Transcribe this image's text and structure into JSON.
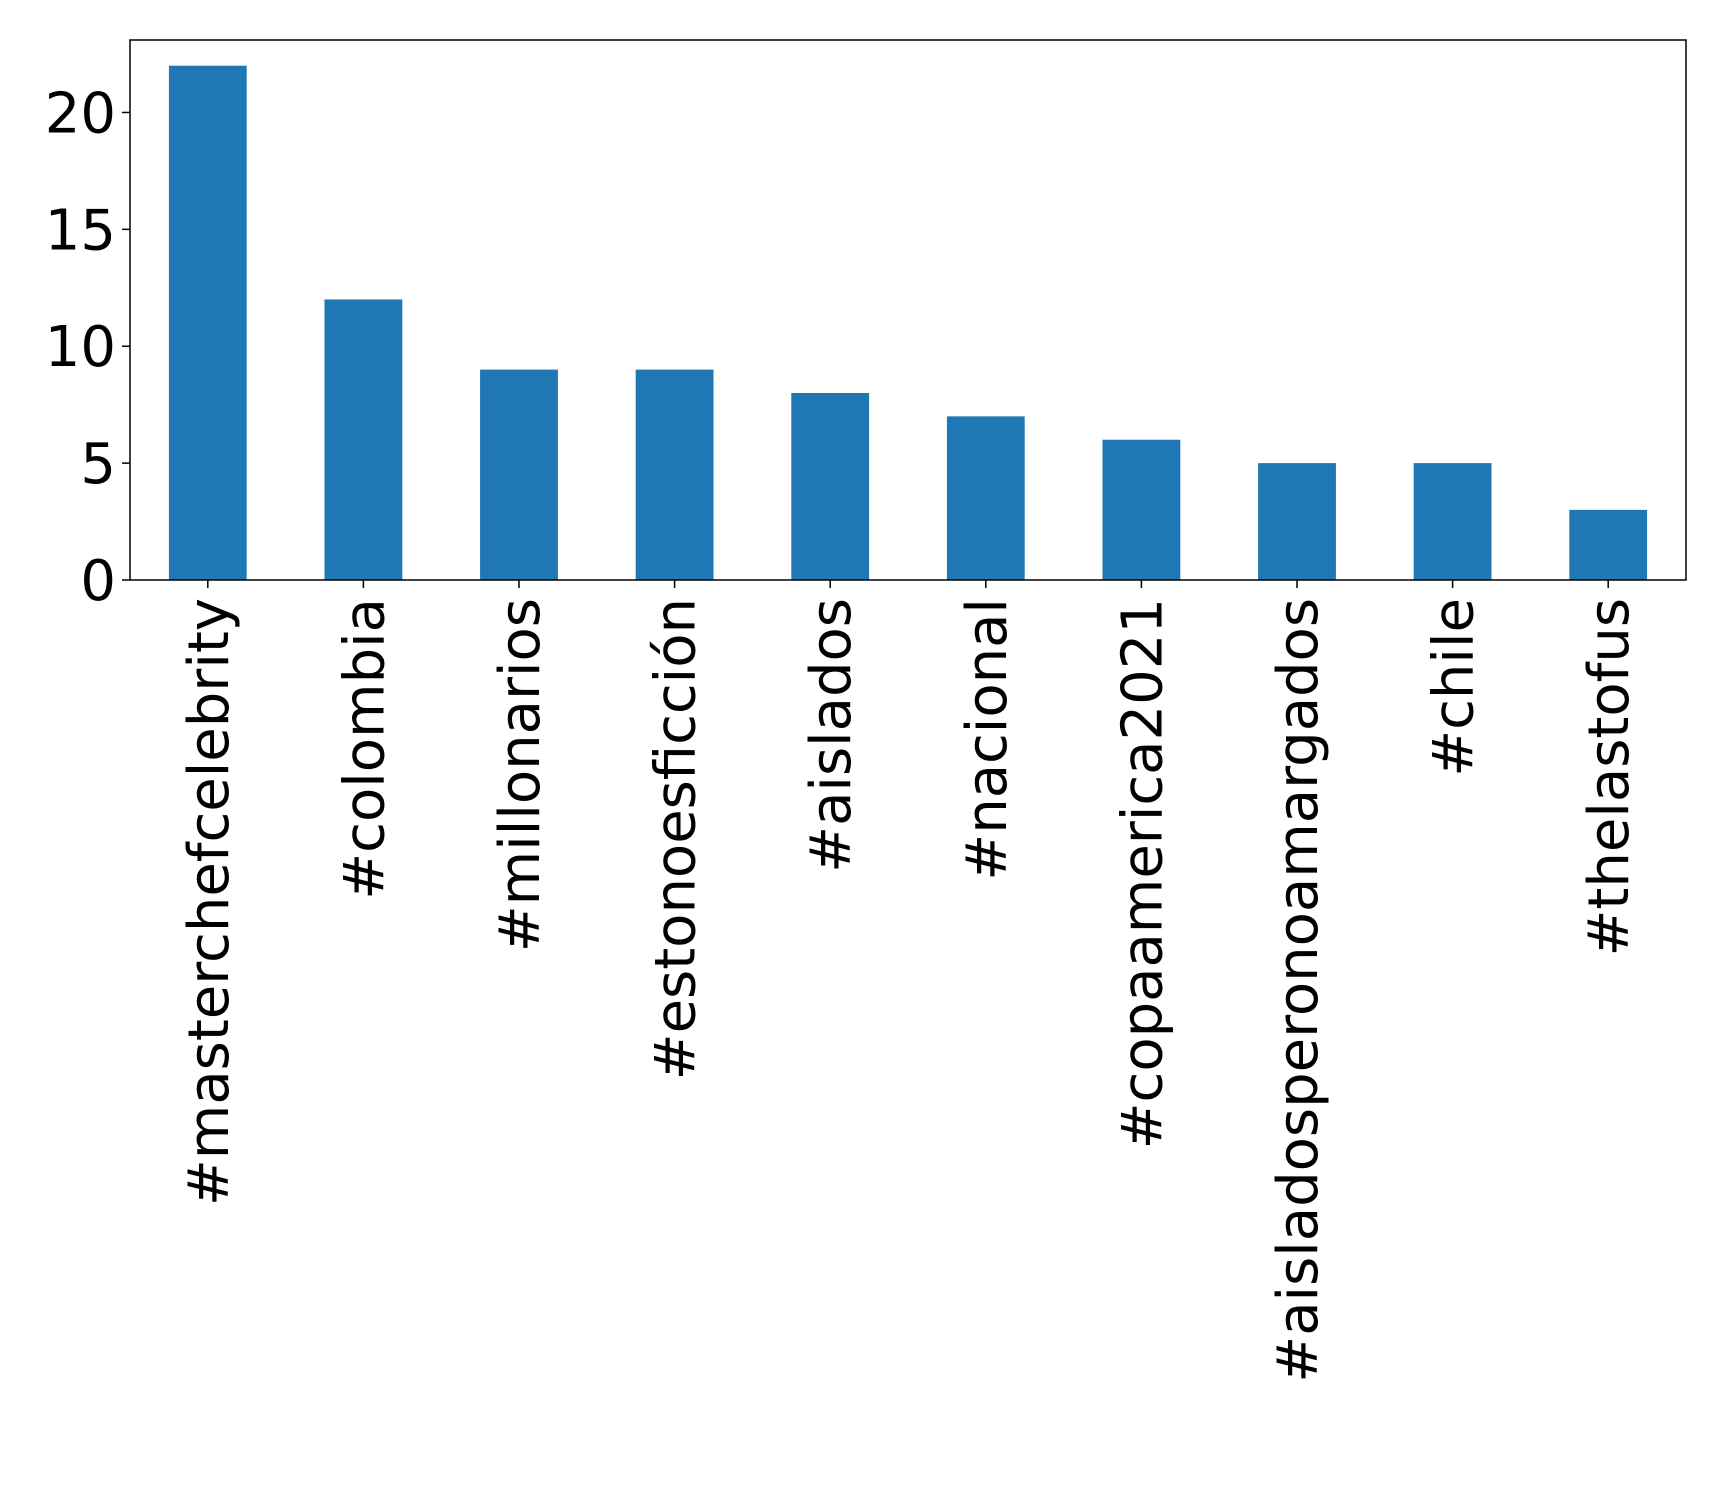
{
  "chart_data": {
    "type": "bar",
    "title": "",
    "xlabel": "",
    "ylabel": "",
    "categories": [
      "#masterchefcelebrity",
      "#colombia",
      "#millonarios",
      "#estonoesficción",
      "#aislados",
      "#nacional",
      "#copaamerica2021",
      "#aisladosperonoamargados",
      "#chile",
      "#thelastofus"
    ],
    "values": [
      22,
      12,
      9,
      9,
      8,
      7,
      6,
      5,
      5,
      3
    ],
    "ylim": [
      0,
      23.1
    ],
    "yticks": [
      0,
      5,
      10,
      15,
      20
    ],
    "grid": false,
    "bar_color": "#1f77b4"
  }
}
